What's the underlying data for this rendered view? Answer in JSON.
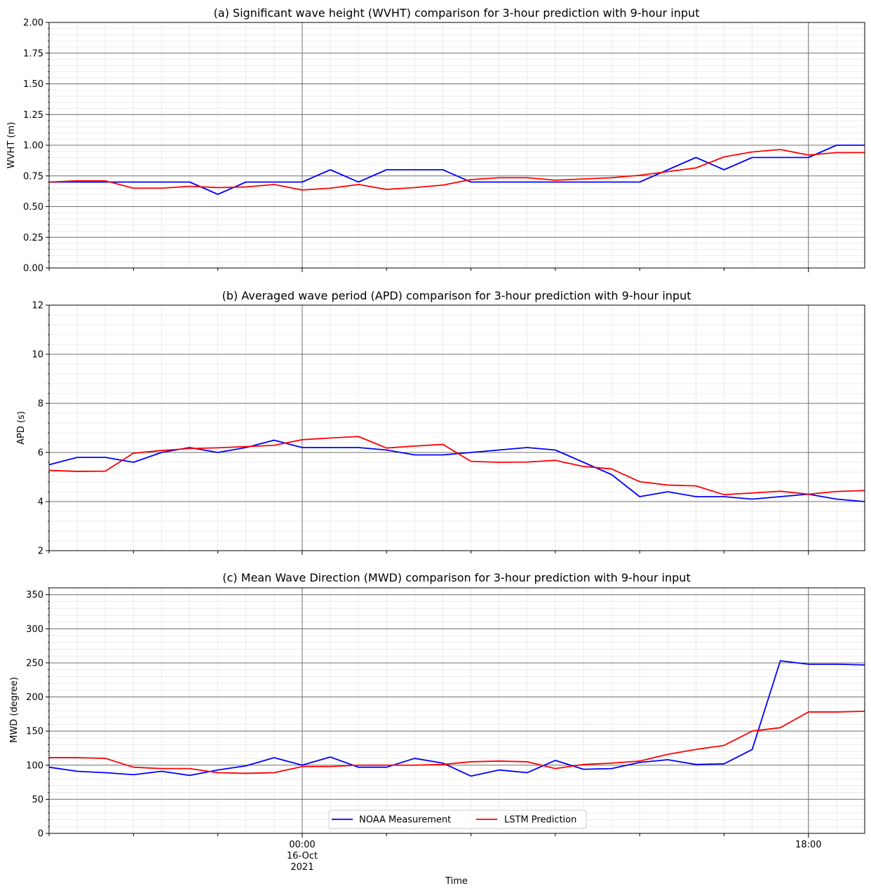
{
  "chart_data": [
    {
      "type": "line",
      "title": "(a) Significant wave height (WVHT) comparison for 3-hour prediction with 9-hour input",
      "ylabel": "WVHT (m)",
      "ylim": [
        0,
        2
      ],
      "yticks": [
        0,
        0.25,
        0.5,
        0.75,
        1.0,
        1.25,
        1.5,
        1.75,
        2.0
      ],
      "ytick_labels": [
        "0.00",
        "0.25",
        "0.50",
        "0.75",
        "1.00",
        "1.25",
        "1.50",
        "1.75",
        "2.00"
      ],
      "grid": true,
      "series": [
        {
          "name": "NOAA Measurement",
          "color": "#0000ff",
          "values": [
            0.7,
            0.7,
            0.7,
            0.7,
            0.7,
            0.7,
            0.6,
            0.7,
            0.7,
            0.7,
            0.8,
            0.7,
            0.8,
            0.8,
            0.8,
            0.7,
            0.7,
            0.7,
            0.7,
            0.7,
            0.7,
            0.7,
            0.8,
            0.9,
            0.8,
            0.9,
            0.9,
            0.9,
            1.0,
            1.0
          ]
        },
        {
          "name": "LSTM Prediction",
          "color": "#ff0000",
          "values": [
            0.7,
            0.71,
            0.71,
            0.65,
            0.65,
            0.665,
            0.655,
            0.66,
            0.68,
            0.635,
            0.65,
            0.68,
            0.64,
            0.655,
            0.675,
            0.72,
            0.735,
            0.735,
            0.715,
            0.725,
            0.735,
            0.755,
            0.785,
            0.815,
            0.905,
            0.945,
            0.965,
            0.92,
            0.94,
            0.94
          ]
        }
      ]
    },
    {
      "type": "line",
      "title": "(b) Averaged wave period (APD) comparison for 3-hour prediction with 9-hour input",
      "ylabel": "APD (s)",
      "ylim": [
        2,
        12
      ],
      "yticks": [
        2,
        4,
        6,
        8,
        10,
        12
      ],
      "ytick_labels": [
        "2",
        "4",
        "6",
        "8",
        "10",
        "12"
      ],
      "grid": true,
      "series": [
        {
          "name": "NOAA Measurement",
          "color": "#0000ff",
          "values": [
            5.5,
            5.8,
            5.8,
            5.6,
            6.0,
            6.2,
            6.0,
            6.2,
            6.5,
            6.2,
            6.2,
            6.2,
            6.1,
            5.9,
            5.9,
            6.0,
            6.1,
            6.2,
            6.1,
            5.6,
            5.1,
            4.2,
            4.4,
            4.2,
            4.2,
            4.1,
            4.2,
            4.3,
            4.1,
            4.0
          ]
        },
        {
          "name": "LSTM Prediction",
          "color": "#ff0000",
          "values": [
            5.27,
            5.23,
            5.24,
            5.97,
            6.08,
            6.16,
            6.19,
            6.24,
            6.29,
            6.52,
            6.59,
            6.65,
            6.18,
            6.26,
            6.33,
            5.64,
            5.6,
            5.61,
            5.68,
            5.43,
            5.33,
            4.81,
            4.67,
            4.64,
            4.28,
            4.35,
            4.42,
            4.3,
            4.41,
            4.45
          ]
        }
      ]
    },
    {
      "type": "line",
      "title": "(c) Mean Wave Direction (MWD) comparison for 3-hour prediction with 9-hour input",
      "ylabel": "MWD (degree)",
      "xlabel": "Time",
      "ylim": [
        0,
        360
      ],
      "yticks": [
        0,
        50,
        100,
        150,
        200,
        250,
        300,
        350
      ],
      "ytick_labels": [
        "0",
        "50",
        "100",
        "150",
        "200",
        "250",
        "300",
        "350"
      ],
      "grid": true,
      "xtick_labels": [
        {
          "at_hours": 0,
          "lines": [
            "00:00",
            "16-Oct",
            "2021"
          ]
        },
        {
          "at_hours": 18,
          "lines": [
            "18:00"
          ]
        }
      ],
      "legend": {
        "position": "lower-center",
        "entries": [
          "NOAA Measurement",
          "LSTM Prediction"
        ]
      },
      "series": [
        {
          "name": "NOAA Measurement",
          "color": "#0000ff",
          "values": [
            97,
            91,
            89,
            86,
            91,
            85,
            93,
            99,
            111,
            100,
            112,
            97,
            97,
            110,
            103,
            84,
            93,
            89,
            107,
            94,
            95,
            104,
            108,
            101,
            102,
            123,
            253,
            248,
            248,
            247
          ]
        },
        {
          "name": "LSTM Prediction",
          "color": "#ff0000",
          "values": [
            111,
            111,
            110,
            97,
            95,
            95,
            89,
            88,
            89,
            98,
            98,
            100,
            100,
            100,
            101,
            105,
            106,
            105,
            95,
            101,
            103,
            106,
            116,
            123,
            129,
            150,
            155,
            178,
            178,
            179
          ]
        }
      ]
    }
  ],
  "x_axis": {
    "start_hours": -9,
    "end_hours": 20,
    "step_hours": 1
  }
}
